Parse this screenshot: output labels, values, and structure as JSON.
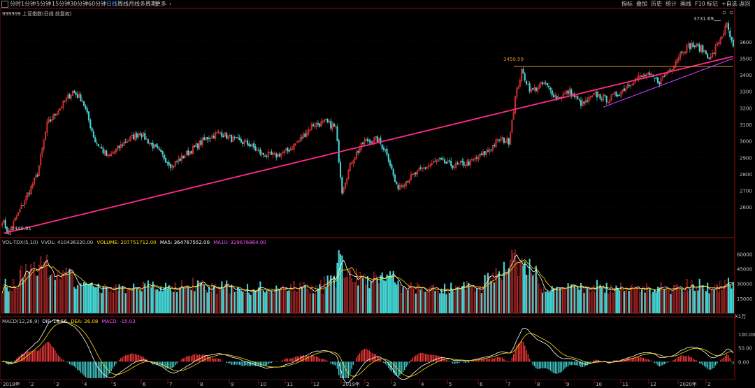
{
  "toolbar": {
    "left_items": [
      {
        "label": "分时",
        "active": false
      },
      {
        "label": "1分钟",
        "active": false
      },
      {
        "label": "5分钟",
        "active": false
      },
      {
        "label": "15分钟",
        "active": false
      },
      {
        "label": "30分钟",
        "active": false
      },
      {
        "label": "60分钟",
        "active": false
      },
      {
        "label": "日线",
        "active": true
      },
      {
        "label": "周线",
        "active": false
      },
      {
        "label": "月线",
        "active": false
      },
      {
        "label": "多周期",
        "active": false
      },
      {
        "label": "更多",
        "active": false
      }
    ],
    "right_items": [
      "指标",
      "叠加",
      "历史",
      "统计",
      "画线",
      "F10",
      "标记",
      "+自选",
      "返回"
    ]
  },
  "colors": {
    "up": "#ff3b3b",
    "down": "#45d6d6",
    "trendline": "#ff2a8a",
    "resistance": "#d08a2a",
    "short_trend": "#c040ff",
    "grid": "#5a0000",
    "axis": "#8a1010",
    "yellow": "#ffe000",
    "white": "#ffffff",
    "magenta": "#ff50ff"
  },
  "main_panel": {
    "title": "999999 上证指数(日线 前复权)",
    "high_label": "3731.69",
    "low_label": "2440.91",
    "resistance_label": "3450.59"
  },
  "vol_panel": {
    "title_prefix": "VOL-TDX(5,10)",
    "vvol": "VVOL: 410436320.00",
    "volume": "VOLUME: 207751712.00",
    "ma5": "MA5: 364767552.00",
    "ma10": "MA10: 329676864.00",
    "unit": "X1万"
  },
  "macd_panel": {
    "title_prefix": "MACD(12,26,9)",
    "dif": "DIF: 18.56",
    "dea": "DEA: 26.08",
    "macd": "MACD: -15.03"
  },
  "chart_data": {
    "type": "candlestick",
    "price_axis": {
      "range": [
        2440,
        3760
      ],
      "ticks": [
        2600,
        2700,
        2800,
        2900,
        3000,
        3100,
        3200,
        3300,
        3400,
        3500,
        3600
      ]
    },
    "volume_axis": {
      "range": [
        0,
        68000
      ],
      "ticks": [
        15000,
        30000,
        45000,
        60000
      ],
      "unit": "X1万"
    },
    "macd_axis": {
      "range": [
        -60,
        130
      ],
      "ticks": [
        0.0,
        50.0,
        100.0
      ]
    },
    "x_labels": [
      "2018年",
      "2",
      "3",
      "4",
      "5",
      "6",
      "7",
      "8",
      "9",
      "10",
      "11",
      "12",
      "2019年",
      "2",
      "3",
      "4",
      "5",
      "6",
      "7",
      "8",
      "9",
      "10",
      "11",
      "12",
      "2020年",
      "2"
    ],
    "anchors": [
      [
        0,
        2520
      ],
      [
        4,
        2445
      ],
      [
        12,
        2600
      ],
      [
        22,
        2800
      ],
      [
        28,
        3100
      ],
      [
        36,
        3200
      ],
      [
        44,
        3300
      ],
      [
        50,
        3250
      ],
      [
        58,
        3000
      ],
      [
        66,
        2900
      ],
      [
        76,
        2990
      ],
      [
        86,
        3050
      ],
      [
        96,
        2950
      ],
      [
        106,
        2850
      ],
      [
        112,
        2900
      ],
      [
        120,
        2960
      ],
      [
        128,
        3020
      ],
      [
        136,
        3050
      ],
      [
        144,
        3010
      ],
      [
        154,
        2980
      ],
      [
        162,
        2920
      ],
      [
        170,
        2910
      ],
      [
        178,
        2940
      ],
      [
        186,
        3010
      ],
      [
        194,
        3100
      ],
      [
        202,
        3110
      ],
      [
        208,
        3080
      ],
      [
        212,
        2700
      ],
      [
        218,
        2880
      ],
      [
        226,
        3000
      ],
      [
        234,
        3010
      ],
      [
        240,
        2930
      ],
      [
        246,
        2720
      ],
      [
        252,
        2760
      ],
      [
        262,
        2830
      ],
      [
        272,
        2880
      ],
      [
        282,
        2850
      ],
      [
        292,
        2870
      ],
      [
        302,
        2930
      ],
      [
        310,
        3010
      ],
      [
        316,
        3000
      ],
      [
        320,
        3260
      ],
      [
        324,
        3420
      ],
      [
        330,
        3300
      ],
      [
        338,
        3350
      ],
      [
        346,
        3260
      ],
      [
        354,
        3300
      ],
      [
        362,
        3220
      ],
      [
        370,
        3280
      ],
      [
        378,
        3250
      ],
      [
        386,
        3300
      ],
      [
        394,
        3370
      ],
      [
        402,
        3400
      ],
      [
        410,
        3360
      ],
      [
        418,
        3450
      ],
      [
        424,
        3550
      ],
      [
        430,
        3580
      ],
      [
        436,
        3560
      ],
      [
        442,
        3500
      ],
      [
        448,
        3620
      ],
      [
        452,
        3700
      ],
      [
        456,
        3560
      ]
    ],
    "trendlines": [
      {
        "name": "main-support",
        "from": [
          1,
          2440.91
        ],
        "to": [
          456,
          3512
        ]
      },
      {
        "name": "resistance",
        "from": [
          319,
          3450.59
        ],
        "to": [
          456,
          3450.59
        ]
      },
      {
        "name": "short-support",
        "from": [
          375,
          3205
        ],
        "to": [
          456,
          3500
        ]
      }
    ]
  }
}
